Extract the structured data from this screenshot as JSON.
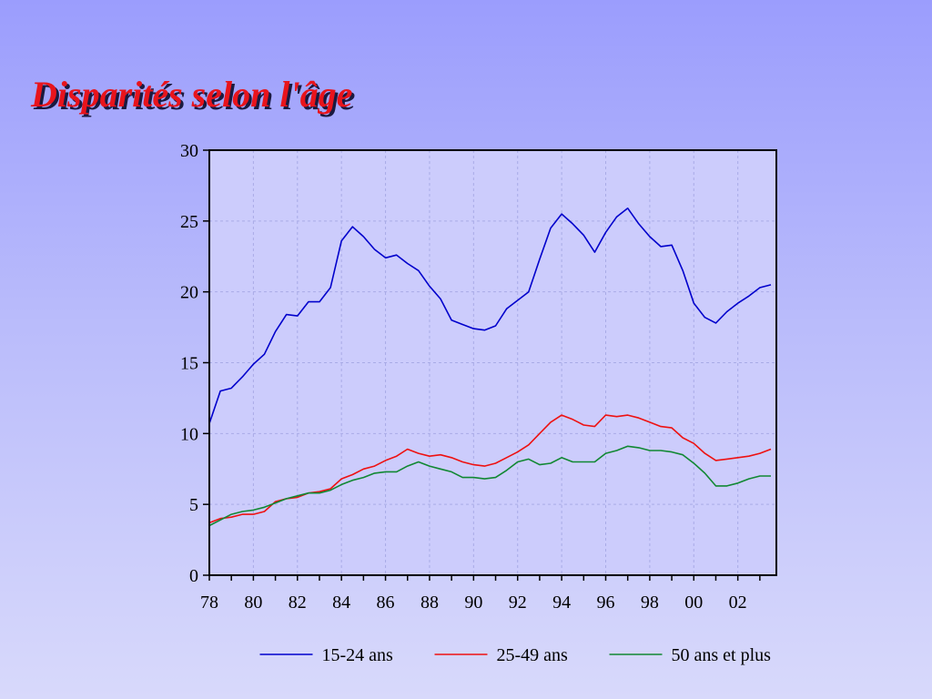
{
  "slide": {
    "title": "Disparités selon l'âge"
  },
  "chart_data": {
    "type": "line",
    "title": "",
    "xlabel": "",
    "ylabel": "",
    "xlim": [
      1978,
      2003.75
    ],
    "ylim": [
      0,
      30
    ],
    "y_ticks": [
      0,
      5,
      10,
      15,
      20,
      25,
      30
    ],
    "x_ticks": [
      {
        "value": 1978,
        "label": "78"
      },
      {
        "value": 1980,
        "label": "80"
      },
      {
        "value": 1982,
        "label": "82"
      },
      {
        "value": 1984,
        "label": "84"
      },
      {
        "value": 1986,
        "label": "86"
      },
      {
        "value": 1988,
        "label": "88"
      },
      {
        "value": 1990,
        "label": "90"
      },
      {
        "value": 1992,
        "label": "92"
      },
      {
        "value": 1994,
        "label": "94"
      },
      {
        "value": 1996,
        "label": "96"
      },
      {
        "value": 1998,
        "label": "98"
      },
      {
        "value": 2000,
        "label": "00"
      },
      {
        "value": 2002,
        "label": "02"
      }
    ],
    "grid": true,
    "legend_position": "bottom",
    "series": [
      {
        "name": "15-24 ans",
        "color": "#0000cc",
        "points": [
          [
            1978.0,
            10.7
          ],
          [
            1978.5,
            13.0
          ],
          [
            1979.0,
            13.2
          ],
          [
            1979.5,
            14.0
          ],
          [
            1980.0,
            14.9
          ],
          [
            1980.5,
            15.6
          ],
          [
            1981.0,
            17.2
          ],
          [
            1981.5,
            18.4
          ],
          [
            1982.0,
            18.3
          ],
          [
            1982.5,
            19.3
          ],
          [
            1983.0,
            19.3
          ],
          [
            1983.5,
            20.3
          ],
          [
            1984.0,
            23.6
          ],
          [
            1984.5,
            24.6
          ],
          [
            1985.0,
            23.9
          ],
          [
            1985.5,
            23.0
          ],
          [
            1986.0,
            22.4
          ],
          [
            1986.5,
            22.6
          ],
          [
            1987.0,
            22.0
          ],
          [
            1987.5,
            21.5
          ],
          [
            1988.0,
            20.4
          ],
          [
            1988.5,
            19.5
          ],
          [
            1989.0,
            18.0
          ],
          [
            1989.5,
            17.7
          ],
          [
            1990.0,
            17.4
          ],
          [
            1990.5,
            17.3
          ],
          [
            1991.0,
            17.6
          ],
          [
            1991.5,
            18.8
          ],
          [
            1992.0,
            19.4
          ],
          [
            1992.5,
            20.0
          ],
          [
            1993.0,
            22.3
          ],
          [
            1993.5,
            24.5
          ],
          [
            1994.0,
            25.5
          ],
          [
            1994.5,
            24.8
          ],
          [
            1995.0,
            24.0
          ],
          [
            1995.5,
            22.8
          ],
          [
            1996.0,
            24.2
          ],
          [
            1996.5,
            25.3
          ],
          [
            1997.0,
            25.9
          ],
          [
            1997.5,
            24.8
          ],
          [
            1998.0,
            23.9
          ],
          [
            1998.5,
            23.2
          ],
          [
            1999.0,
            23.3
          ],
          [
            1999.5,
            21.5
          ],
          [
            2000.0,
            19.2
          ],
          [
            2000.5,
            18.2
          ],
          [
            2001.0,
            17.8
          ],
          [
            2001.5,
            18.6
          ],
          [
            2002.0,
            19.2
          ],
          [
            2002.5,
            19.7
          ],
          [
            2003.0,
            20.3
          ],
          [
            2003.5,
            20.5
          ]
        ]
      },
      {
        "name": "25-49 ans",
        "color": "#ee1111",
        "points": [
          [
            1978.0,
            3.7
          ],
          [
            1978.5,
            4.0
          ],
          [
            1979.0,
            4.1
          ],
          [
            1979.5,
            4.3
          ],
          [
            1980.0,
            4.3
          ],
          [
            1980.5,
            4.5
          ],
          [
            1981.0,
            5.2
          ],
          [
            1981.5,
            5.4
          ],
          [
            1982.0,
            5.5
          ],
          [
            1982.5,
            5.8
          ],
          [
            1983.0,
            5.9
          ],
          [
            1983.5,
            6.1
          ],
          [
            1984.0,
            6.8
          ],
          [
            1984.5,
            7.1
          ],
          [
            1985.0,
            7.5
          ],
          [
            1985.5,
            7.7
          ],
          [
            1986.0,
            8.1
          ],
          [
            1986.5,
            8.4
          ],
          [
            1987.0,
            8.9
          ],
          [
            1987.5,
            8.6
          ],
          [
            1988.0,
            8.4
          ],
          [
            1988.5,
            8.5
          ],
          [
            1989.0,
            8.3
          ],
          [
            1989.5,
            8.0
          ],
          [
            1990.0,
            7.8
          ],
          [
            1990.5,
            7.7
          ],
          [
            1991.0,
            7.9
          ],
          [
            1991.5,
            8.3
          ],
          [
            1992.0,
            8.7
          ],
          [
            1992.5,
            9.2
          ],
          [
            1993.0,
            10.0
          ],
          [
            1993.5,
            10.8
          ],
          [
            1994.0,
            11.3
          ],
          [
            1994.5,
            11.0
          ],
          [
            1995.0,
            10.6
          ],
          [
            1995.5,
            10.5
          ],
          [
            1996.0,
            11.3
          ],
          [
            1996.5,
            11.2
          ],
          [
            1997.0,
            11.3
          ],
          [
            1997.5,
            11.1
          ],
          [
            1998.0,
            10.8
          ],
          [
            1998.5,
            10.5
          ],
          [
            1999.0,
            10.4
          ],
          [
            1999.5,
            9.7
          ],
          [
            2000.0,
            9.3
          ],
          [
            2000.5,
            8.6
          ],
          [
            2001.0,
            8.1
          ],
          [
            2001.5,
            8.2
          ],
          [
            2002.0,
            8.3
          ],
          [
            2002.5,
            8.4
          ],
          [
            2003.0,
            8.6
          ],
          [
            2003.5,
            8.9
          ]
        ]
      },
      {
        "name": "50 ans et plus",
        "color": "#118833",
        "points": [
          [
            1978.0,
            3.5
          ],
          [
            1978.5,
            3.9
          ],
          [
            1979.0,
            4.3
          ],
          [
            1979.5,
            4.5
          ],
          [
            1980.0,
            4.6
          ],
          [
            1980.5,
            4.8
          ],
          [
            1981.0,
            5.1
          ],
          [
            1981.5,
            5.4
          ],
          [
            1982.0,
            5.6
          ],
          [
            1982.5,
            5.8
          ],
          [
            1983.0,
            5.8
          ],
          [
            1983.5,
            6.0
          ],
          [
            1984.0,
            6.4
          ],
          [
            1984.5,
            6.7
          ],
          [
            1985.0,
            6.9
          ],
          [
            1985.5,
            7.2
          ],
          [
            1986.0,
            7.3
          ],
          [
            1986.5,
            7.3
          ],
          [
            1987.0,
            7.7
          ],
          [
            1987.5,
            8.0
          ],
          [
            1988.0,
            7.7
          ],
          [
            1988.5,
            7.5
          ],
          [
            1989.0,
            7.3
          ],
          [
            1989.5,
            6.9
          ],
          [
            1990.0,
            6.9
          ],
          [
            1990.5,
            6.8
          ],
          [
            1991.0,
            6.9
          ],
          [
            1991.5,
            7.4
          ],
          [
            1992.0,
            8.0
          ],
          [
            1992.5,
            8.2
          ],
          [
            1993.0,
            7.8
          ],
          [
            1993.5,
            7.9
          ],
          [
            1994.0,
            8.3
          ],
          [
            1994.5,
            8.0
          ],
          [
            1995.0,
            8.0
          ],
          [
            1995.5,
            8.0
          ],
          [
            1996.0,
            8.6
          ],
          [
            1996.5,
            8.8
          ],
          [
            1997.0,
            9.1
          ],
          [
            1997.5,
            9.0
          ],
          [
            1998.0,
            8.8
          ],
          [
            1998.5,
            8.8
          ],
          [
            1999.0,
            8.7
          ],
          [
            1999.5,
            8.5
          ],
          [
            2000.0,
            7.9
          ],
          [
            2000.5,
            7.2
          ],
          [
            2001.0,
            6.3
          ],
          [
            2001.5,
            6.3
          ],
          [
            2002.0,
            6.5
          ],
          [
            2002.5,
            6.8
          ],
          [
            2003.0,
            7.0
          ],
          [
            2003.5,
            7.0
          ]
        ]
      }
    ]
  }
}
